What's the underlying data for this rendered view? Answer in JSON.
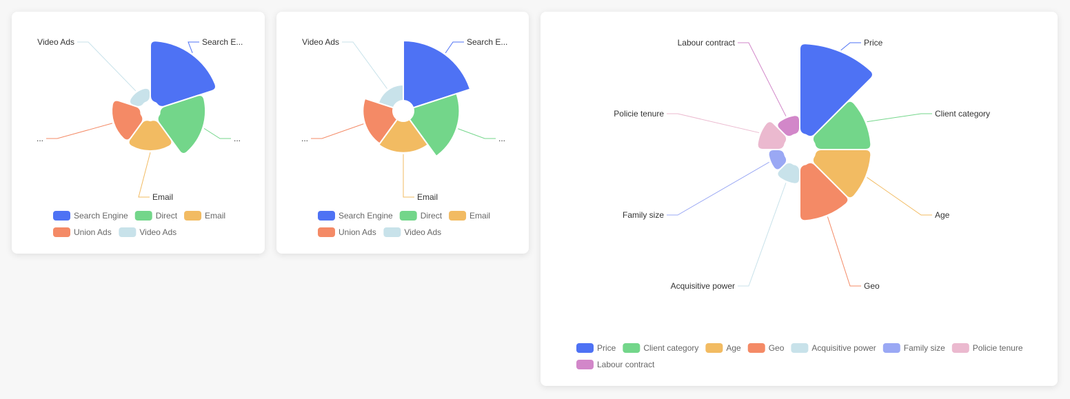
{
  "chart_data": [
    {
      "type": "pie",
      "rose": true,
      "categories": [
        "Search Engine",
        "Direct",
        "Email",
        "Union Ads",
        "Video Ads"
      ],
      "labels": [
        "Search E...",
        "...",
        "Email",
        "...",
        "Video Ads"
      ],
      "values": [
        100,
        80,
        60,
        58,
        38
      ],
      "colors": [
        "#4e72f4",
        "#73d68a",
        "#f2bb62",
        "#f48a66",
        "#c8e2ea"
      ],
      "legend": [
        "Search Engine",
        "Direct",
        "Email",
        "Union Ads",
        "Video Ads"
      ],
      "legend_position": "bottom"
    },
    {
      "type": "pie",
      "rose": true,
      "categories": [
        "Search Engine",
        "Direct",
        "Email",
        "Union Ads",
        "Video Ads"
      ],
      "labels": [
        "Search E...",
        "...",
        "Email",
        "...",
        "Video Ads"
      ],
      "values": [
        100,
        80,
        60,
        58,
        38
      ],
      "colors": [
        "#4e72f4",
        "#73d68a",
        "#f2bb62",
        "#f48a66",
        "#c8e2ea"
      ],
      "legend": [
        "Search Engine",
        "Direct",
        "Email",
        "Union Ads",
        "Video Ads"
      ],
      "legend_position": "bottom"
    },
    {
      "type": "pie",
      "rose": true,
      "categories": [
        "Price",
        "Client category",
        "Age",
        "Geo",
        "Acquisitive power",
        "Family size",
        "Policie tenure",
        "Labour contract"
      ],
      "labels": [
        "Price",
        "Client category",
        "Age",
        "Geo",
        "Acquisitive power",
        "Family size",
        "Policie tenure",
        "Labour contract"
      ],
      "values": [
        100,
        65,
        65,
        65,
        28,
        25,
        36,
        28
      ],
      "colors": [
        "#4e72f4",
        "#73d68a",
        "#f2bb62",
        "#f48a66",
        "#c8e2ea",
        "#9aa8f4",
        "#ebb9cf",
        "#d287c9"
      ],
      "legend": [
        "Price",
        "Client category",
        "Age",
        "Geo",
        "Acquisitive power",
        "Family size",
        "Policie tenure",
        "Labour contract"
      ],
      "legend_position": "bottom"
    }
  ]
}
